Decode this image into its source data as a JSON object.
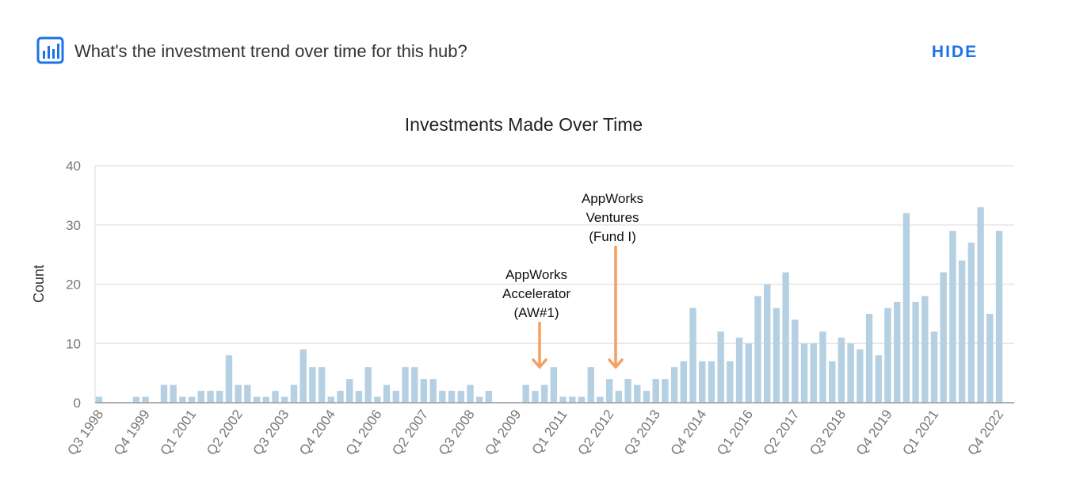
{
  "header": {
    "question": "What's the investment trend over time for this hub?",
    "button": "HIDE"
  },
  "chart_data": {
    "type": "bar",
    "title": "Investments Made Over Time",
    "y_label": "Count",
    "color": "#b5d0e2",
    "grid": true,
    "ylim": [
      0,
      40
    ],
    "yticks": [
      0,
      10,
      20,
      30,
      40
    ],
    "categories": [
      "Q3 1998",
      null,
      null,
      null,
      null,
      "Q4 1999",
      null,
      null,
      null,
      null,
      "Q1 2001",
      null,
      null,
      null,
      null,
      "Q2 2002",
      null,
      null,
      null,
      null,
      "Q3 2003",
      null,
      null,
      null,
      null,
      "Q4 2004",
      null,
      null,
      null,
      null,
      "Q1 2006",
      null,
      null,
      null,
      null,
      "Q2 2007",
      null,
      null,
      null,
      null,
      "Q3 2008",
      null,
      null,
      null,
      null,
      "Q4 2009",
      null,
      null,
      null,
      null,
      "Q1 2011",
      null,
      null,
      null,
      null,
      "Q2 2012",
      null,
      null,
      null,
      null,
      "Q3 2013",
      null,
      null,
      null,
      null,
      "Q4 2014",
      null,
      null,
      null,
      null,
      "Q1 2016",
      null,
      null,
      null,
      null,
      "Q2 2017",
      null,
      null,
      null,
      null,
      "Q3 2018",
      null,
      null,
      null,
      null,
      "Q4 2019",
      null,
      null,
      null,
      null,
      "Q1 2021",
      null,
      null,
      null,
      null,
      null,
      null,
      "Q4 2022"
    ],
    "values": [
      1,
      0,
      0,
      0,
      1,
      1,
      0,
      3,
      3,
      1,
      1,
      2,
      2,
      2,
      8,
      3,
      3,
      1,
      1,
      2,
      1,
      3,
      9,
      6,
      6,
      1,
      2,
      4,
      2,
      6,
      1,
      3,
      2,
      6,
      6,
      4,
      4,
      2,
      2,
      2,
      3,
      1,
      2,
      0,
      0,
      0,
      3,
      2,
      3,
      6,
      1,
      1,
      1,
      6,
      1,
      4,
      2,
      4,
      3,
      2,
      4,
      4,
      6,
      7,
      16,
      7,
      7,
      12,
      7,
      11,
      10,
      18,
      20,
      16,
      22,
      14,
      10,
      10,
      12,
      7,
      11,
      10,
      9,
      15,
      8,
      16,
      17,
      32,
      17,
      18,
      12,
      22,
      29,
      24,
      27,
      33,
      15,
      29
    ],
    "annotations": [
      {
        "lines": [
          "AppWorks",
          "Accelerator",
          "(AW#1)"
        ]
      },
      {
        "lines": [
          "AppWorks",
          "Ventures",
          "(Fund I)"
        ]
      }
    ]
  }
}
